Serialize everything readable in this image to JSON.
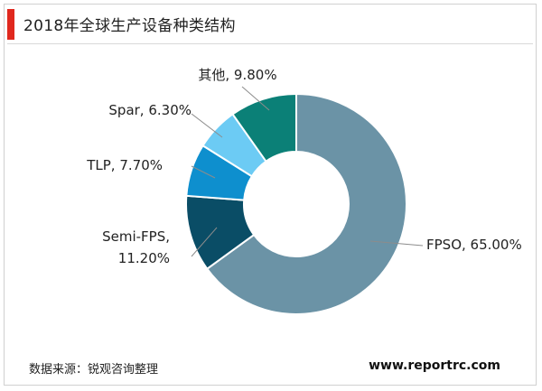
{
  "title": "2018年全球生产设备种类结构",
  "source": "数据来源：锐观咨询整理",
  "website": "www.reportrc.com",
  "chart_data": {
    "type": "pie",
    "style": "donut",
    "slices": [
      {
        "label": "FPSO",
        "value": 65.0,
        "text": "FPSO, 65.00%",
        "color": "#6b93a6"
      },
      {
        "label": "Semi-FPS",
        "value": 11.2,
        "text_lines": [
          "Semi-FPS,",
          "11.20%"
        ],
        "color": "#0a4d66"
      },
      {
        "label": "TLP",
        "value": 7.7,
        "text": "TLP, 7.70%",
        "color": "#0e8fce"
      },
      {
        "label": "Spar",
        "value": 6.3,
        "text": "Spar, 6.30%",
        "color": "#6ccbf4"
      },
      {
        "label": "其他",
        "value": 9.8,
        "text": "其他, 9.80%",
        "color": "#0b8077"
      }
    ]
  }
}
